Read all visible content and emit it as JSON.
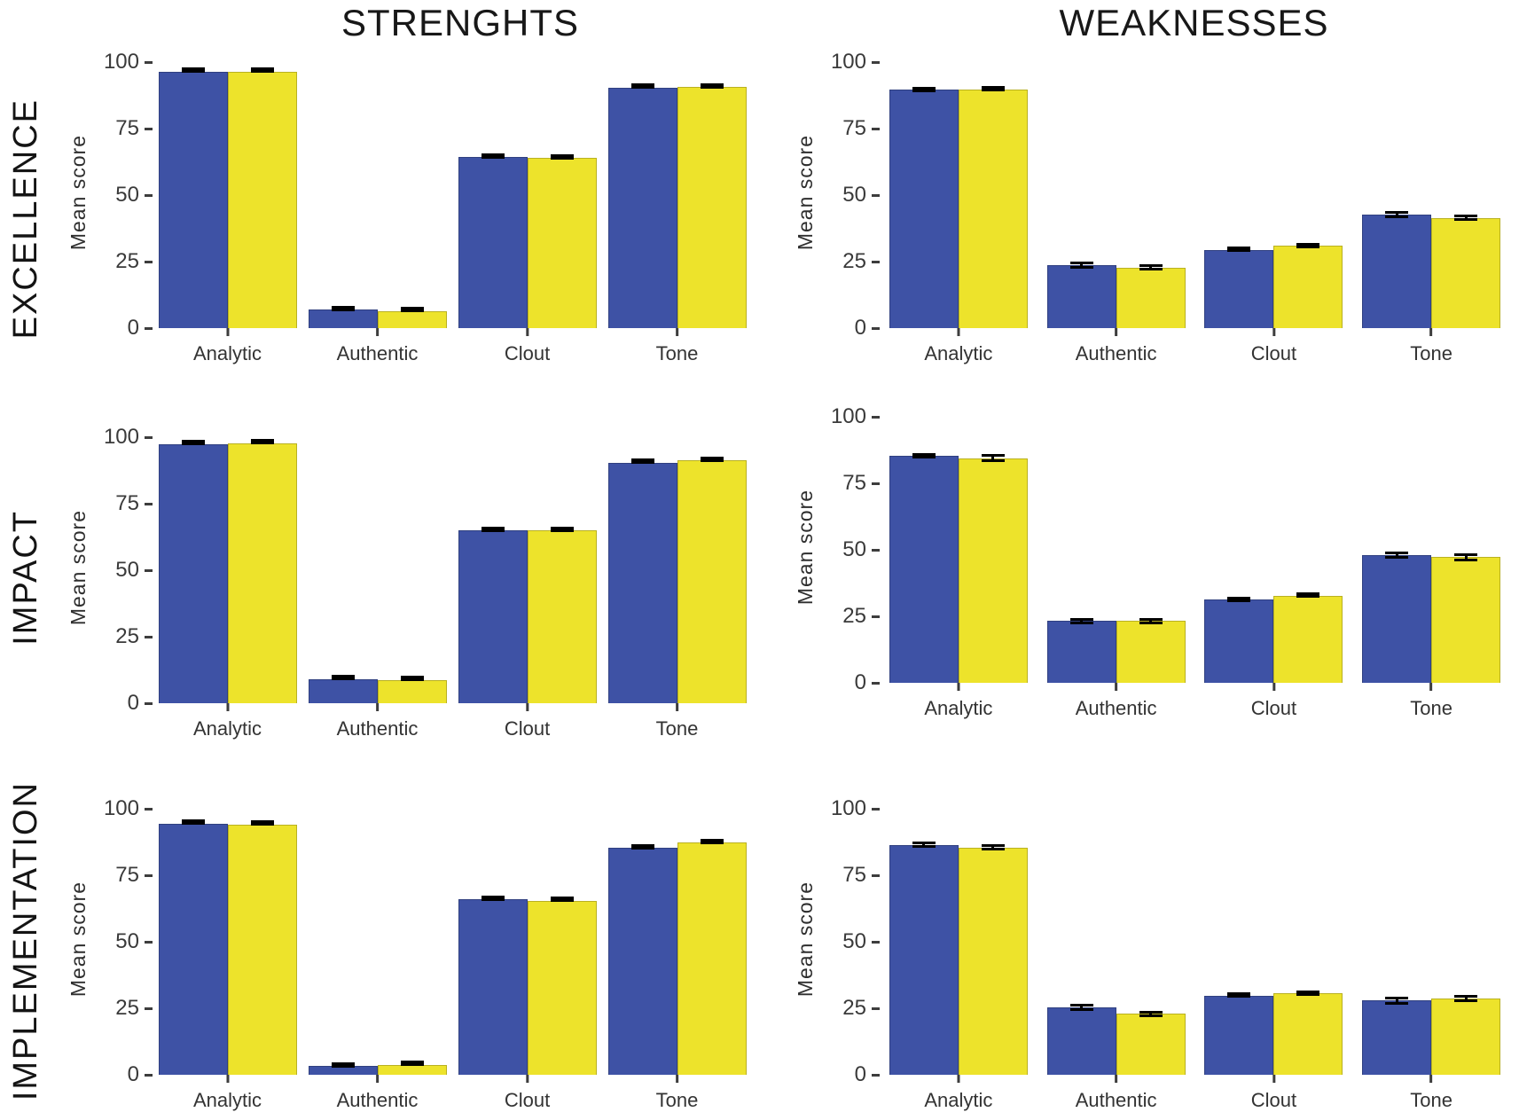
{
  "figure_titles": {
    "left_column": "STRENGHTS",
    "right_column": "WEAKNESSES"
  },
  "row_labels": [
    {
      "label": "EXCELLENCE"
    },
    {
      "label": "IMPACT"
    },
    {
      "label": "IMPLEMENTATION"
    }
  ],
  "axis": {
    "ylabel": "Mean score",
    "yticks": [
      0,
      25,
      50,
      75,
      100
    ],
    "categories": [
      "Analytic",
      "Authentic",
      "Clout",
      "Tone"
    ]
  },
  "colors": {
    "series_blue": "#3e52a5",
    "series_yellow": "#ede32b",
    "error_bar": "#000000",
    "text": "#222222"
  },
  "chart_data": [
    {
      "type": "bar",
      "row": "EXCELLENCE",
      "column": "STRENGHTS",
      "title": "",
      "xlabel": "",
      "ylabel": "Mean score",
      "categories": [
        "Analytic",
        "Authentic",
        "Clout",
        "Tone"
      ],
      "yticks": [
        0,
        25,
        50,
        75,
        100
      ],
      "ylim": [
        0,
        100
      ],
      "series": [
        {
          "name": "blue",
          "color": "#3e52a5",
          "values": [
            96.3,
            6.9,
            64.4,
            90.3
          ],
          "errors": [
            0.3,
            0.4,
            0.6,
            0.4
          ]
        },
        {
          "name": "yellow",
          "color": "#ede32b",
          "values": [
            96.3,
            6.4,
            64.0,
            90.8
          ],
          "errors": [
            0.3,
            0.4,
            0.8,
            0.8
          ]
        }
      ]
    },
    {
      "type": "bar",
      "row": "EXCELLENCE",
      "column": "WEAKNESSES",
      "title": "",
      "xlabel": "",
      "ylabel": "Mean score",
      "categories": [
        "Analytic",
        "Authentic",
        "Clout",
        "Tone"
      ],
      "yticks": [
        0,
        25,
        50,
        75,
        100
      ],
      "ylim": [
        0,
        100
      ],
      "series": [
        {
          "name": "blue",
          "color": "#3e52a5",
          "values": [
            89.8,
            23.7,
            29.5,
            42.8
          ],
          "errors": [
            1.0,
            1.4,
            0.9,
            1.3
          ]
        },
        {
          "name": "yellow",
          "color": "#ede32b",
          "values": [
            89.8,
            22.8,
            30.9,
            41.5
          ],
          "errors": [
            0.8,
            1.1,
            0.9,
            1.2
          ]
        }
      ]
    },
    {
      "type": "bar",
      "row": "IMPACT",
      "column": "STRENGHTS",
      "title": "",
      "xlabel": "",
      "ylabel": "Mean score",
      "categories": [
        "Analytic",
        "Authentic",
        "Clout",
        "Tone"
      ],
      "yticks": [
        0,
        25,
        50,
        75,
        100
      ],
      "ylim": [
        0,
        100
      ],
      "series": [
        {
          "name": "blue",
          "color": "#3e52a5",
          "values": [
            97.3,
            9.0,
            65.0,
            90.4
          ],
          "errors": [
            0.3,
            0.3,
            0.6,
            0.5
          ]
        },
        {
          "name": "yellow",
          "color": "#ede32b",
          "values": [
            97.6,
            8.6,
            65.0,
            91.2
          ],
          "errors": [
            0.4,
            0.3,
            0.6,
            0.6
          ]
        }
      ]
    },
    {
      "type": "bar",
      "row": "IMPACT",
      "column": "WEAKNESSES",
      "title": "",
      "xlabel": "",
      "ylabel": "Mean score",
      "categories": [
        "Analytic",
        "Authentic",
        "Clout",
        "Tone"
      ],
      "yticks": [
        0,
        25,
        50,
        75,
        100
      ],
      "ylim": [
        0,
        100
      ],
      "series": [
        {
          "name": "blue",
          "color": "#3e52a5",
          "values": [
            85.3,
            23.3,
            31.5,
            48.0
          ],
          "errors": [
            1.1,
            1.2,
            1.0,
            1.4
          ]
        },
        {
          "name": "yellow",
          "color": "#ede32b",
          "values": [
            84.5,
            23.3,
            32.8,
            47.3
          ],
          "errors": [
            1.4,
            1.2,
            0.8,
            1.5
          ]
        }
      ]
    },
    {
      "type": "bar",
      "row": "IMPLEMENTATION",
      "column": "STRENGHTS",
      "title": "",
      "xlabel": "",
      "ylabel": "Mean score",
      "categories": [
        "Analytic",
        "Authentic",
        "Clout",
        "Tone"
      ],
      "yticks": [
        0,
        25,
        50,
        75,
        100
      ],
      "ylim": [
        0,
        100
      ],
      "series": [
        {
          "name": "blue",
          "color": "#3e52a5",
          "values": [
            94.3,
            3.3,
            66.0,
            85.5
          ],
          "errors": [
            0.3,
            0.6,
            0.5,
            0.8
          ]
        },
        {
          "name": "yellow",
          "color": "#ede32b",
          "values": [
            94.0,
            3.7,
            65.3,
            87.3
          ],
          "errors": [
            0.4,
            0.5,
            0.4,
            0.7
          ]
        }
      ]
    },
    {
      "type": "bar",
      "row": "IMPLEMENTATION",
      "column": "WEAKNESSES",
      "title": "",
      "xlabel": "",
      "ylabel": "Mean score",
      "categories": [
        "Analytic",
        "Authentic",
        "Clout",
        "Tone"
      ],
      "yticks": [
        0,
        25,
        50,
        75,
        100
      ],
      "ylim": [
        0,
        100
      ],
      "series": [
        {
          "name": "blue",
          "color": "#3e52a5",
          "values": [
            86.5,
            25.3,
            29.8,
            27.9
          ],
          "errors": [
            1.2,
            1.3,
            0.9,
            1.5
          ]
        },
        {
          "name": "yellow",
          "color": "#ede32b",
          "values": [
            85.5,
            22.9,
            30.6,
            28.8
          ],
          "errors": [
            1.1,
            1.2,
            0.9,
            1.3
          ]
        }
      ]
    }
  ]
}
